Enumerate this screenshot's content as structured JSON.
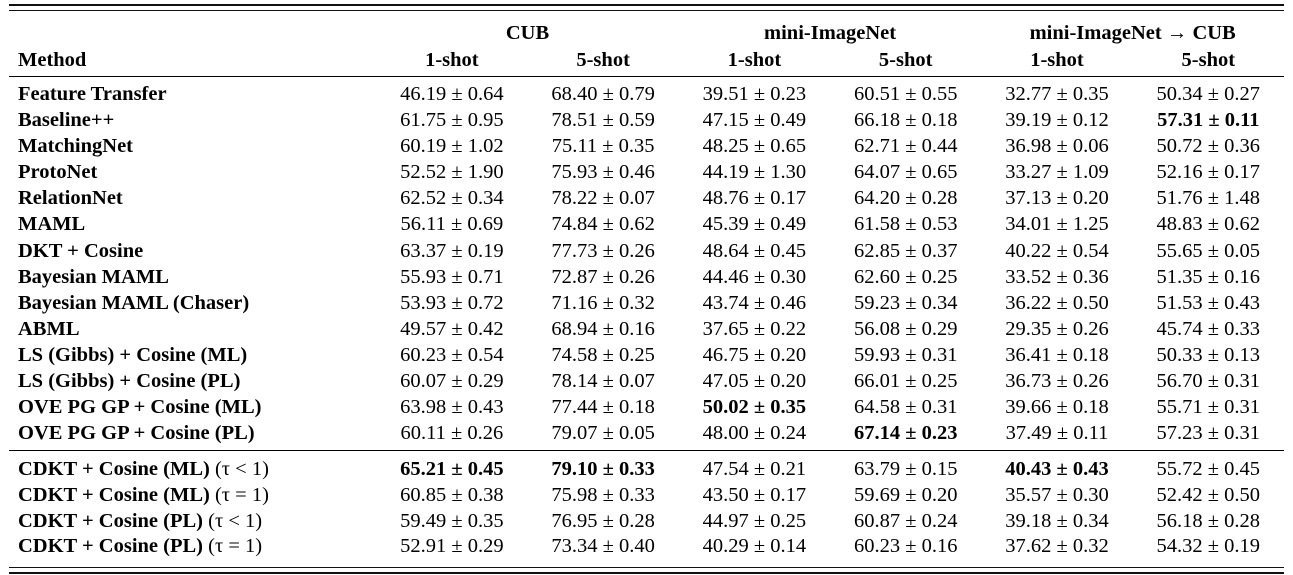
{
  "page": {
    "background_color": "#ffffff",
    "text_color": "#000000"
  },
  "table": {
    "method_header": "Method",
    "column_groups": [
      {
        "label": "CUB",
        "span": 2
      },
      {
        "label": "mini-ImageNet",
        "span": 2
      },
      {
        "label": "mini-ImageNet → CUB",
        "span": 2
      }
    ],
    "sub_headers": [
      "1-shot",
      "5-shot",
      "1-shot",
      "5-shot",
      "1-shot",
      "5-shot"
    ],
    "row_groups": [
      {
        "rows": [
          {
            "method": "Feature Transfer",
            "math": "",
            "cells": [
              {
                "t": "46.19 ± 0.64",
                "b": false
              },
              {
                "t": "68.40 ± 0.79",
                "b": false
              },
              {
                "t": "39.51 ± 0.23",
                "b": false
              },
              {
                "t": "60.51 ± 0.55",
                "b": false
              },
              {
                "t": "32.77 ± 0.35",
                "b": false
              },
              {
                "t": "50.34 ± 0.27",
                "b": false
              }
            ]
          },
          {
            "method": "Baseline++",
            "math": "",
            "cells": [
              {
                "t": "61.75 ± 0.95",
                "b": false
              },
              {
                "t": "78.51 ± 0.59",
                "b": false
              },
              {
                "t": "47.15 ± 0.49",
                "b": false
              },
              {
                "t": "66.18 ± 0.18",
                "b": false
              },
              {
                "t": "39.19 ± 0.12",
                "b": false
              },
              {
                "t": "57.31 ± 0.11",
                "b": true
              }
            ]
          },
          {
            "method": "MatchingNet",
            "math": "",
            "cells": [
              {
                "t": "60.19 ± 1.02",
                "b": false
              },
              {
                "t": "75.11 ± 0.35",
                "b": false
              },
              {
                "t": "48.25 ± 0.65",
                "b": false
              },
              {
                "t": "62.71 ± 0.44",
                "b": false
              },
              {
                "t": "36.98 ± 0.06",
                "b": false
              },
              {
                "t": "50.72 ± 0.36",
                "b": false
              }
            ]
          },
          {
            "method": "ProtoNet",
            "math": "",
            "cells": [
              {
                "t": "52.52 ± 1.90",
                "b": false
              },
              {
                "t": "75.93 ± 0.46",
                "b": false
              },
              {
                "t": "44.19 ± 1.30",
                "b": false
              },
              {
                "t": "64.07 ± 0.65",
                "b": false
              },
              {
                "t": "33.27 ± 1.09",
                "b": false
              },
              {
                "t": "52.16 ± 0.17",
                "b": false
              }
            ]
          },
          {
            "method": "RelationNet",
            "math": "",
            "cells": [
              {
                "t": "62.52 ± 0.34",
                "b": false
              },
              {
                "t": "78.22 ± 0.07",
                "b": false
              },
              {
                "t": "48.76 ± 0.17",
                "b": false
              },
              {
                "t": "64.20 ± 0.28",
                "b": false
              },
              {
                "t": "37.13 ± 0.20",
                "b": false
              },
              {
                "t": "51.76 ± 1.48",
                "b": false
              }
            ]
          },
          {
            "method": "MAML",
            "math": "",
            "cells": [
              {
                "t": "56.11 ± 0.69",
                "b": false
              },
              {
                "t": "74.84 ± 0.62",
                "b": false
              },
              {
                "t": "45.39 ± 0.49",
                "b": false
              },
              {
                "t": "61.58 ± 0.53",
                "b": false
              },
              {
                "t": "34.01 ± 1.25",
                "b": false
              },
              {
                "t": "48.83 ± 0.62",
                "b": false
              }
            ]
          },
          {
            "method": "DKT + Cosine",
            "math": "",
            "cells": [
              {
                "t": "63.37 ± 0.19",
                "b": false
              },
              {
                "t": "77.73 ± 0.26",
                "b": false
              },
              {
                "t": "48.64 ± 0.45",
                "b": false
              },
              {
                "t": "62.85 ± 0.37",
                "b": false
              },
              {
                "t": "40.22 ± 0.54",
                "b": false
              },
              {
                "t": "55.65 ± 0.05",
                "b": false
              }
            ]
          },
          {
            "method": "Bayesian MAML",
            "math": "",
            "cells": [
              {
                "t": "55.93 ± 0.71",
                "b": false
              },
              {
                "t": "72.87 ± 0.26",
                "b": false
              },
              {
                "t": "44.46 ± 0.30",
                "b": false
              },
              {
                "t": "62.60 ± 0.25",
                "b": false
              },
              {
                "t": "33.52 ± 0.36",
                "b": false
              },
              {
                "t": "51.35 ± 0.16",
                "b": false
              }
            ]
          },
          {
            "method": "Bayesian MAML (Chaser)",
            "math": "",
            "cells": [
              {
                "t": "53.93 ± 0.72",
                "b": false
              },
              {
                "t": "71.16 ± 0.32",
                "b": false
              },
              {
                "t": "43.74 ± 0.46",
                "b": false
              },
              {
                "t": "59.23 ± 0.34",
                "b": false
              },
              {
                "t": "36.22 ± 0.50",
                "b": false
              },
              {
                "t": "51.53 ± 0.43",
                "b": false
              }
            ]
          },
          {
            "method": "ABML",
            "math": "",
            "cells": [
              {
                "t": "49.57 ± 0.42",
                "b": false
              },
              {
                "t": "68.94 ± 0.16",
                "b": false
              },
              {
                "t": "37.65 ± 0.22",
                "b": false
              },
              {
                "t": "56.08 ± 0.29",
                "b": false
              },
              {
                "t": "29.35 ± 0.26",
                "b": false
              },
              {
                "t": "45.74 ± 0.33",
                "b": false
              }
            ]
          },
          {
            "method": "LS (Gibbs) + Cosine (ML)",
            "math": "",
            "cells": [
              {
                "t": "60.23 ± 0.54",
                "b": false
              },
              {
                "t": "74.58 ± 0.25",
                "b": false
              },
              {
                "t": "46.75 ± 0.20",
                "b": false
              },
              {
                "t": "59.93 ± 0.31",
                "b": false
              },
              {
                "t": "36.41 ± 0.18",
                "b": false
              },
              {
                "t": "50.33 ± 0.13",
                "b": false
              }
            ]
          },
          {
            "method": "LS (Gibbs) + Cosine (PL)",
            "math": "",
            "cells": [
              {
                "t": "60.07 ± 0.29",
                "b": false
              },
              {
                "t": "78.14 ± 0.07",
                "b": false
              },
              {
                "t": "47.05 ± 0.20",
                "b": false
              },
              {
                "t": "66.01 ± 0.25",
                "b": false
              },
              {
                "t": "36.73 ± 0.26",
                "b": false
              },
              {
                "t": "56.70 ± 0.31",
                "b": false
              }
            ]
          },
          {
            "method": "OVE PG GP + Cosine (ML)",
            "math": "",
            "cells": [
              {
                "t": "63.98 ± 0.43",
                "b": false
              },
              {
                "t": "77.44 ± 0.18",
                "b": false
              },
              {
                "t": "50.02 ± 0.35",
                "b": true
              },
              {
                "t": "64.58 ± 0.31",
                "b": false
              },
              {
                "t": "39.66 ± 0.18",
                "b": false
              },
              {
                "t": "55.71 ± 0.31",
                "b": false
              }
            ]
          },
          {
            "method": "OVE PG GP + Cosine (PL)",
            "math": "",
            "cells": [
              {
                "t": "60.11 ± 0.26",
                "b": false
              },
              {
                "t": "79.07 ± 0.05",
                "b": false
              },
              {
                "t": "48.00 ± 0.24",
                "b": false
              },
              {
                "t": "67.14 ± 0.23",
                "b": true
              },
              {
                "t": "37.49 ± 0.11",
                "b": false
              },
              {
                "t": "57.23 ± 0.31",
                "b": false
              }
            ]
          }
        ]
      },
      {
        "rows": [
          {
            "method": "CDKT + Cosine (ML)",
            "math": "(τ < 1)",
            "cells": [
              {
                "t": "65.21 ± 0.45",
                "b": true
              },
              {
                "t": "79.10 ± 0.33",
                "b": true
              },
              {
                "t": "47.54 ± 0.21",
                "b": false
              },
              {
                "t": "63.79 ± 0.15",
                "b": false
              },
              {
                "t": "40.43 ± 0.43",
                "b": true
              },
              {
                "t": "55.72 ± 0.45",
                "b": false
              }
            ]
          },
          {
            "method": "CDKT + Cosine (ML)",
            "math": "(τ = 1)",
            "cells": [
              {
                "t": "60.85 ± 0.38",
                "b": false
              },
              {
                "t": "75.98 ± 0.33",
                "b": false
              },
              {
                "t": "43.50 ± 0.17",
                "b": false
              },
              {
                "t": "59.69 ± 0.20",
                "b": false
              },
              {
                "t": "35.57 ± 0.30",
                "b": false
              },
              {
                "t": "52.42 ± 0.50",
                "b": false
              }
            ]
          },
          {
            "method": "CDKT + Cosine (PL)",
            "math": "(τ < 1)",
            "cells": [
              {
                "t": "59.49 ± 0.35",
                "b": false
              },
              {
                "t": "76.95 ± 0.28",
                "b": false
              },
              {
                "t": "44.97 ± 0.25",
                "b": false
              },
              {
                "t": "60.87 ± 0.24",
                "b": false
              },
              {
                "t": "39.18 ± 0.34",
                "b": false
              },
              {
                "t": "56.18 ± 0.28",
                "b": false
              }
            ]
          },
          {
            "method": "CDKT + Cosine (PL)",
            "math": "(τ = 1)",
            "cells": [
              {
                "t": "52.91 ± 0.29",
                "b": false
              },
              {
                "t": "73.34 ± 0.40",
                "b": false
              },
              {
                "t": "40.29 ± 0.14",
                "b": false
              },
              {
                "t": "60.23 ± 0.16",
                "b": false
              },
              {
                "t": "37.62 ± 0.32",
                "b": false
              },
              {
                "t": "54.32 ± 0.19",
                "b": false
              }
            ]
          }
        ]
      }
    ]
  }
}
